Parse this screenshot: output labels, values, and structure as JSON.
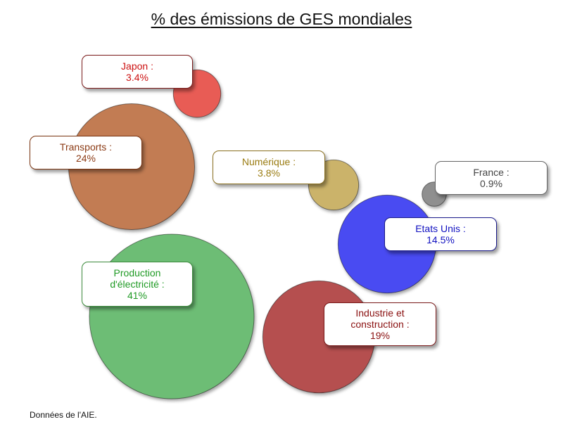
{
  "title": "% des émissions de GES mondiales",
  "source_note": "Données de l'AIE.",
  "chart_data": {
    "type": "bubble",
    "title": "% des émissions de GES mondiales",
    "unit": "%",
    "items": [
      {
        "key": "japon",
        "label": "Japon :",
        "value_label": "3.4%",
        "value": 3.4,
        "fill": "#e85c55",
        "text_color": "#cc1111",
        "border_color": "#7a1a1a"
      },
      {
        "key": "transports",
        "label": "Transports :",
        "value_label": "24%",
        "value": 24,
        "fill": "#c27b52",
        "text_color": "#8b3a14",
        "border_color": "#7a3410"
      },
      {
        "key": "numerique",
        "label": "Numérique :",
        "value_label": "3.8%",
        "value": 3.8,
        "fill": "#cbb36a",
        "text_color": "#9a7c12",
        "border_color": "#8a7020"
      },
      {
        "key": "france",
        "label": "France :",
        "value_label": "0.9%",
        "value": 0.9,
        "fill": "#8f8f8f",
        "text_color": "#444444",
        "border_color": "#666666"
      },
      {
        "key": "etats_unis",
        "label": "Etats Unis :",
        "value_label": "14.5%",
        "value": 14.5,
        "fill": "#4a4bf2",
        "text_color": "#1010c0",
        "border_color": "#1a1a8a"
      },
      {
        "key": "production_electricite",
        "label": "Production\nd'électricité :",
        "value_label": "41%",
        "value": 41,
        "fill": "#6dbd74",
        "text_color": "#1f9a24",
        "border_color": "#3a8a3a"
      },
      {
        "key": "industrie_construction",
        "label": "Industrie et\nconstruction :",
        "value_label": "19%",
        "value": 19,
        "fill": "#b55050",
        "text_color": "#8a1010",
        "border_color": "#7a1a1a"
      }
    ]
  }
}
